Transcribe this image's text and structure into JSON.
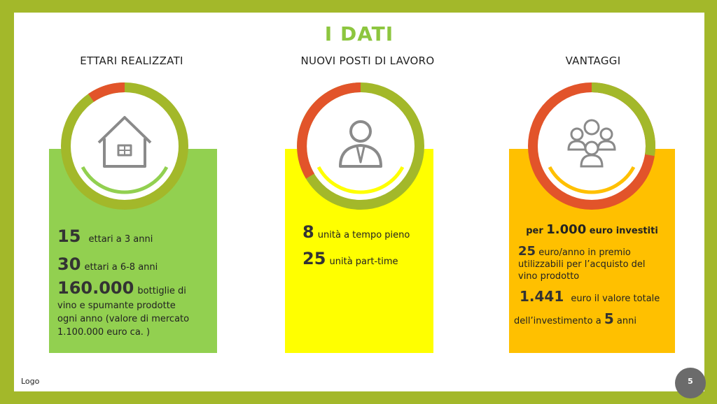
{
  "title": "I DATI",
  "columns": [
    {
      "heading": "ETTARI REALIZZATI"
    },
    {
      "heading": "NUOVI POSTI DI LAVORO"
    },
    {
      "heading": "VANTAGGI"
    }
  ],
  "ettari": {
    "n1": "15",
    "t1": "ettari a 3 anni",
    "n2": "30",
    "t2": "ettari a 6-8 anni",
    "n3": "160.000",
    "t3a": "bottiglie di",
    "t3b": "vino e spumante prodotte",
    "t3c": "ogni anno (valore di mercato",
    "t3d": "1.100.000 euro ca. )"
  },
  "lavoro": {
    "n1": "8",
    "t1": "unità a tempo pieno",
    "n2": "25",
    "t2": "unità part-time"
  },
  "vantaggi": {
    "h_pre": "per",
    "h_num": "1.000",
    "h_post": "euro investiti",
    "n1": "25",
    "t1a": "euro/anno in premio",
    "t1b": "utilizzabili per l’acquisto del",
    "t1c": "vino prodotto",
    "n2": "1.441",
    "t2a": "euro il valore totale",
    "t2b": "dell’investimento a",
    "n3": "5",
    "t2c": "anni"
  },
  "footer": {
    "logo": "Logo",
    "page": "5"
  },
  "colors": {
    "frame": "#a3b82a",
    "title": "#8dc63f",
    "green_panel": "#92d050",
    "yellow_panel": "#ffff00",
    "orange_panel": "#ffc000",
    "ring_green": "#a3b82a",
    "ring_red": "#e2542a",
    "icon_gray": "#8a8a8a"
  },
  "icons": [
    "house-icon",
    "person-icon",
    "group-icon"
  ]
}
